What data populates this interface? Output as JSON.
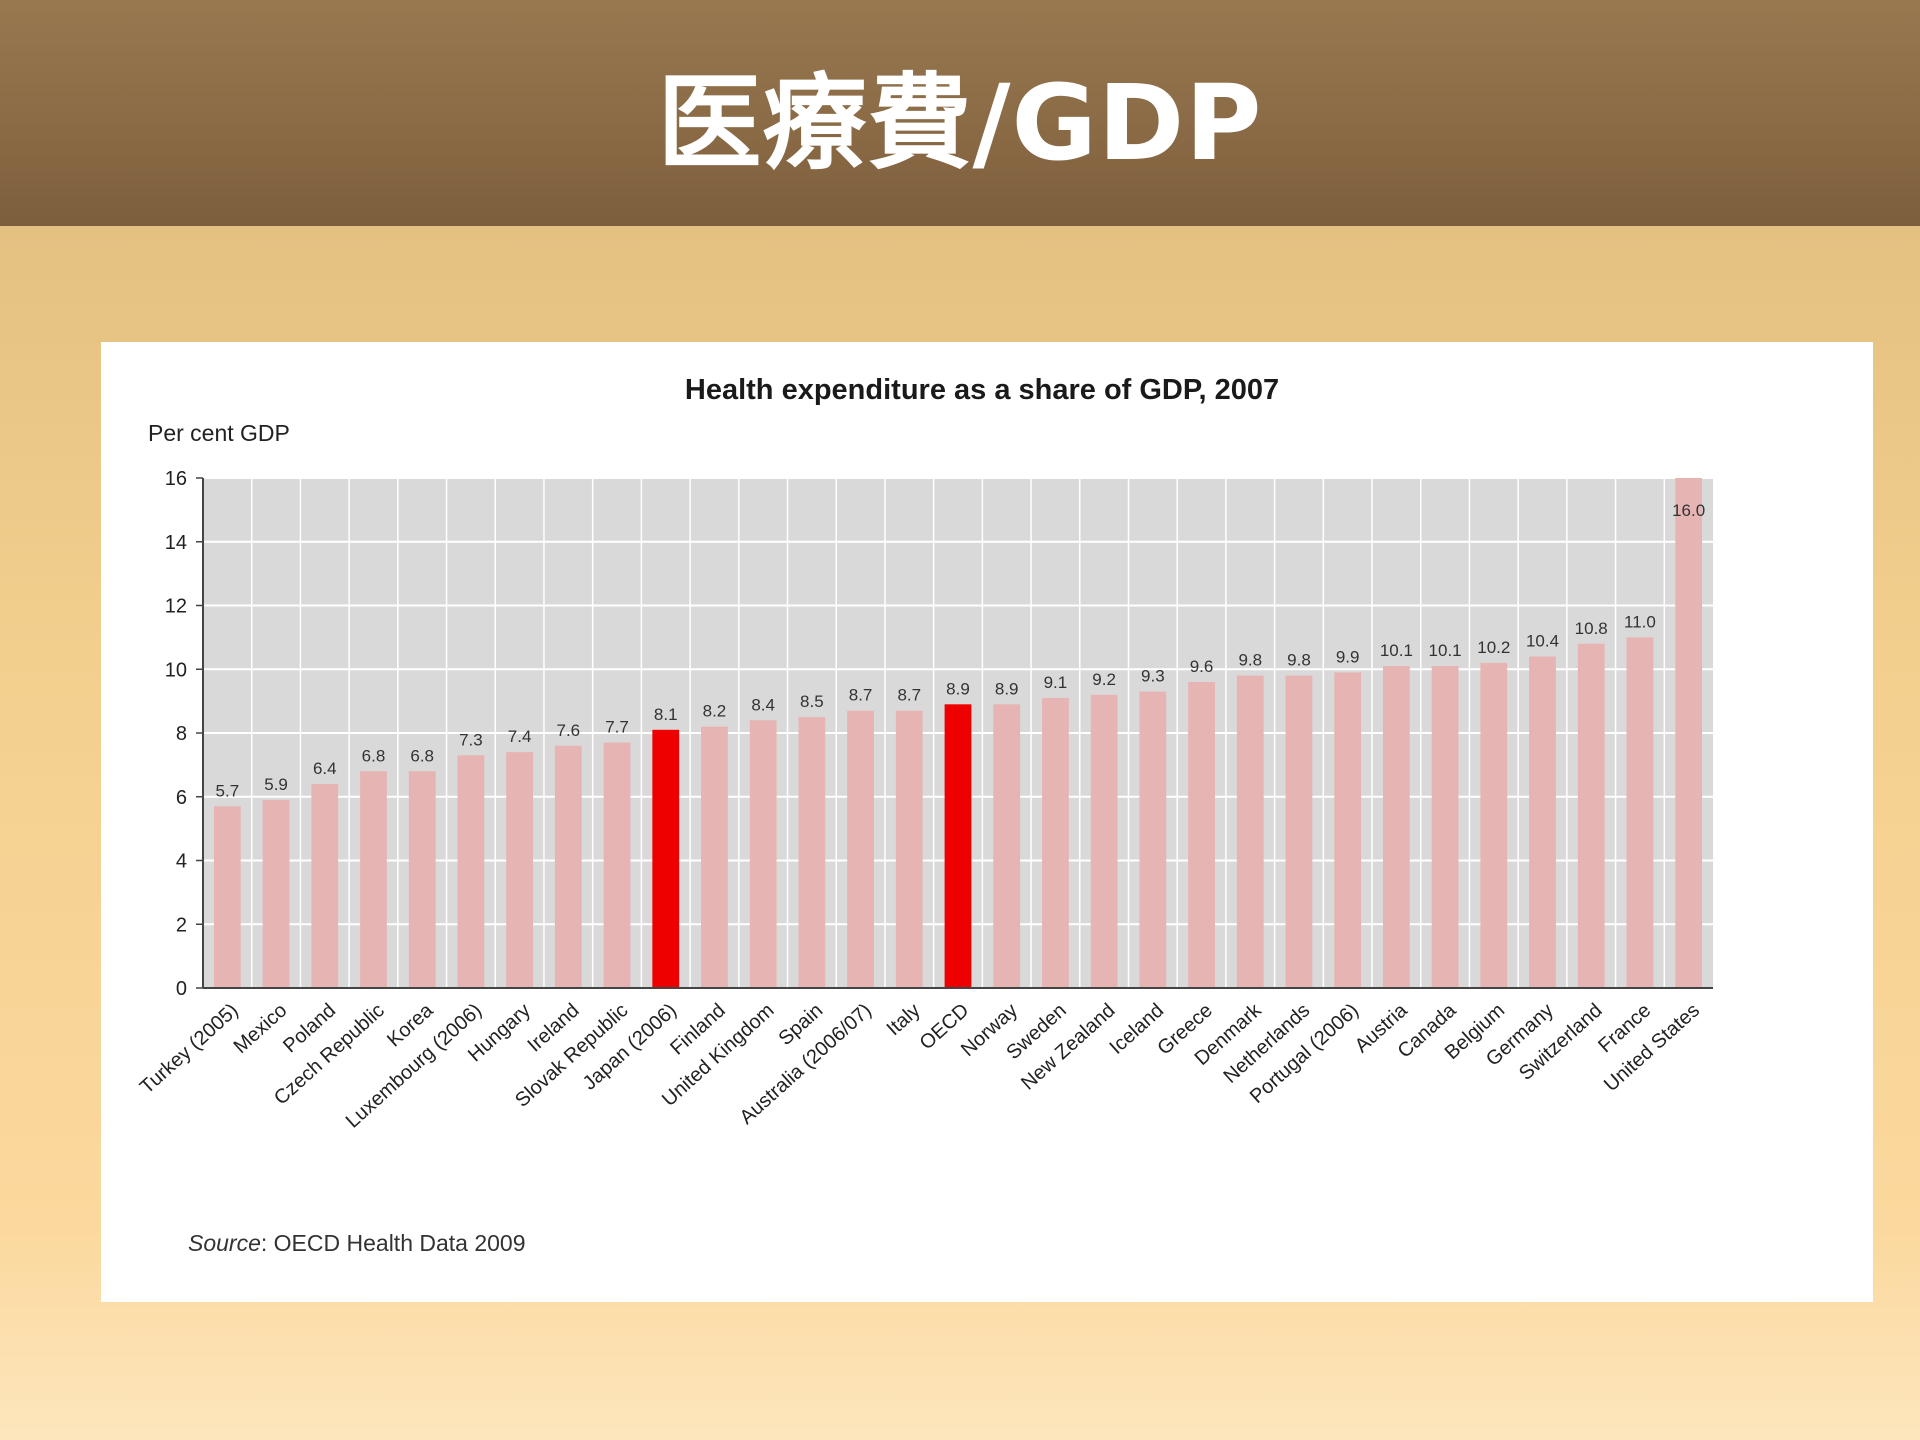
{
  "slide": {
    "title": "医療費/GDP"
  },
  "chart_data": {
    "type": "bar",
    "title": "Health expenditure as a share of GDP, 2007",
    "ylabel": "Per cent GDP",
    "xlabel": "",
    "ylim": [
      0,
      16
    ],
    "yticks": [
      0,
      2,
      4,
      6,
      8,
      10,
      12,
      14,
      16
    ],
    "grid": true,
    "categories": [
      "Turkey (2005)",
      "Mexico",
      "Poland",
      "Czech Republic",
      "Korea",
      "Luxembourg (2006)",
      "Hungary",
      "Ireland",
      "Slovak Republic",
      "Japan (2006)",
      "Finland",
      "United Kingdom",
      "Spain",
      "Australia (2006/07)",
      "Italy",
      "OECD",
      "Norway",
      "Sweden",
      "New Zealand",
      "Iceland",
      "Greece",
      "Denmark",
      "Netherlands",
      "Portugal (2006)",
      "Austria",
      "Canada",
      "Belgium",
      "Germany",
      "Switzerland",
      "France",
      "United States"
    ],
    "values": [
      5.7,
      5.9,
      6.4,
      6.8,
      6.8,
      7.3,
      7.4,
      7.6,
      7.7,
      8.1,
      8.2,
      8.4,
      8.5,
      8.7,
      8.7,
      8.9,
      8.9,
      9.1,
      9.2,
      9.3,
      9.6,
      9.8,
      9.8,
      9.9,
      10.1,
      10.1,
      10.2,
      10.4,
      10.8,
      11.0,
      16.0
    ],
    "value_labels": [
      "5.7",
      "5.9",
      "6.4",
      "6.8",
      "6.8",
      "7.3",
      "7.4",
      "7.6",
      "7.7",
      "8.1",
      "8.2",
      "8.4",
      "8.5",
      "8.7",
      "8.7",
      "8.9",
      "8.9",
      "9.1",
      "9.2",
      "9.3",
      "9.6",
      "9.8",
      "9.8",
      "9.9",
      "10.1",
      "10.1",
      "10.2",
      "10.4",
      "10.8",
      "11.0",
      "16.0"
    ],
    "highlighted": [
      "Japan (2006)",
      "OECD"
    ],
    "colors": {
      "bar": "#e7b4b4",
      "highlight": "#ee0000",
      "plot_bg": "#d9d9d9",
      "grid": "#ffffff"
    },
    "source_prefix": "Source",
    "source_text": ": OECD Health Data 2009"
  }
}
